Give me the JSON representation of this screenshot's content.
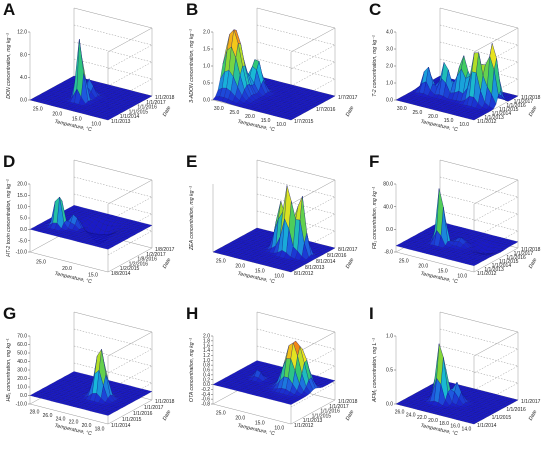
{
  "figure": {
    "panel_letters": [
      "A",
      "B",
      "C",
      "D",
      "E",
      "F",
      "G",
      "H",
      "I"
    ]
  },
  "palette": [
    "#1a1ac8",
    "#1e5be0",
    "#18b8d8",
    "#34c86a",
    "#9fdc2a",
    "#f2e41e",
    "#f59a14",
    "#e0241a"
  ],
  "chart_data": [
    {
      "panel": "A",
      "type": "surface",
      "zlabel": "DON concentration, mg kg⁻¹",
      "xlabel": "Temperature, °C",
      "ylabel": "Date",
      "z_ticks": [
        "0.0",
        "4.0",
        "8.0",
        "12.0"
      ],
      "x_ticks": [
        "25.0",
        "20.0",
        "15.0",
        "10.0"
      ],
      "y_ticks": [
        "1/1/2013",
        "1/1/2014",
        "1/1/2015",
        "1/1/2016",
        "1/1/2017",
        "1/1/2018"
      ],
      "zlim": [
        0,
        12
      ],
      "peaks": [
        {
          "x": 0.45,
          "y": 0.35,
          "z": 12.0,
          "w": 0.04
        },
        {
          "x": 0.45,
          "y": 0.55,
          "z": 3.0,
          "w": 0.05
        }
      ]
    },
    {
      "panel": "B",
      "type": "surface",
      "zlabel": "3-ADON concentration, mg kg⁻¹",
      "xlabel": "Temperature, °C",
      "ylabel": "Date",
      "z_ticks": [
        "0.0",
        "0.5",
        "1.0",
        "1.5",
        "2.0"
      ],
      "x_ticks": [
        "30.0",
        "25.0",
        "20.0",
        "15.0",
        "10.0"
      ],
      "y_ticks": [
        "1/7/2015",
        "1/7/2016",
        "1/7/2017"
      ],
      "zlim": [
        0,
        2
      ],
      "peaks": [
        {
          "x": 0.1,
          "y": 0.3,
          "z": 2.0,
          "w": 0.1
        },
        {
          "x": 0.25,
          "y": 0.55,
          "z": 1.0,
          "w": 0.06
        }
      ]
    },
    {
      "panel": "C",
      "type": "surface",
      "zlabel": "T-2 concentration, mg kg⁻¹",
      "xlabel": "Temperature, °C",
      "ylabel": "Date",
      "z_ticks": [
        "0.0",
        "1.0",
        "2.0",
        "3.0",
        "4.0"
      ],
      "x_ticks": [
        "30.0",
        "25.0",
        "20.0",
        "15.0",
        "10.0"
      ],
      "y_ticks": [
        "1/1/2012",
        "1/1/2013",
        "1/1/2014",
        "1/1/2015",
        "1/1/2016",
        "1/1/2017",
        "1/1/2018"
      ],
      "zlim": [
        0,
        4
      ],
      "peaks": [
        {
          "x": 0.75,
          "y": 0.5,
          "z": 3.2,
          "w": 0.06
        },
        {
          "x": 0.9,
          "y": 0.6,
          "z": 3.6,
          "w": 0.06
        },
        {
          "x": 0.55,
          "y": 0.55,
          "z": 2.5,
          "w": 0.06
        },
        {
          "x": 0.35,
          "y": 0.5,
          "z": 2.0,
          "w": 0.05
        },
        {
          "x": 0.15,
          "y": 0.45,
          "z": 1.6,
          "w": 0.05
        }
      ]
    },
    {
      "panel": "D",
      "type": "surface",
      "zlabel": "HT-2 toxin concentration, mg kg⁻¹",
      "xlabel": "Temperature, °C",
      "ylabel": "Date",
      "z_ticks": [
        "-10.0",
        "-5.0",
        "0.0",
        "5.0",
        "10.0",
        "15.0",
        "20.0"
      ],
      "x_ticks": [
        "25.0",
        "20.0",
        "15.0"
      ],
      "y_ticks": [
        "1/8/2014",
        "1/2/2015",
        "1/2/2016",
        "1/8/2016",
        "1/2/2017",
        "1/8/2017"
      ],
      "zlim": [
        -10,
        20
      ],
      "peaks": [
        {
          "x": 0.2,
          "y": 0.3,
          "z": 18.0,
          "w": 0.04
        },
        {
          "x": 0.35,
          "y": 0.4,
          "z": 6.0,
          "w": 0.05
        },
        {
          "x": 0.55,
          "y": 0.6,
          "z": -8.0,
          "w": 0.1
        }
      ]
    },
    {
      "panel": "E",
      "type": "surface",
      "zlabel": "ZEA concentration, mg kg⁻¹",
      "xlabel": "Temperature, °C",
      "ylabel": "Date",
      "z_ticks": [],
      "x_ticks": [
        "25.0",
        "20.0",
        "15.0",
        "10.0"
      ],
      "y_ticks": [
        "8/1/2012",
        "8/1/2013",
        "8/1/2014",
        "8/1/2016",
        "8/1/2017"
      ],
      "zlim": [
        0,
        1
      ],
      "peaks": [
        {
          "x": 0.55,
          "y": 0.55,
          "z": 0.7,
          "w": 0.05
        },
        {
          "x": 0.68,
          "y": 0.5,
          "z": 1.0,
          "w": 0.05
        },
        {
          "x": 0.82,
          "y": 0.55,
          "z": 0.9,
          "w": 0.05
        }
      ]
    },
    {
      "panel": "F",
      "type": "surface",
      "zlabel": "FB₁ concentration, mg kg⁻¹",
      "xlabel": "Temperature, °C",
      "ylabel": "Date",
      "z_ticks": [
        "-8.0",
        "0.0",
        "40.0",
        "80.0"
      ],
      "x_ticks": [
        "25.0",
        "20.0",
        "15.0",
        "10.0"
      ],
      "y_ticks": [
        "1/1/2012",
        "1/1/2013",
        "1/1/2014",
        "1/1/2015",
        "1/1/2016",
        "1/1/2017",
        "1/1/2018"
      ],
      "zlim": [
        -8,
        80
      ],
      "peaks": [
        {
          "x": 0.35,
          "y": 0.4,
          "z": 80.0,
          "w": 0.04
        },
        {
          "x": 0.55,
          "y": 0.5,
          "z": 10.0,
          "w": 0.06
        },
        {
          "x": 0.8,
          "y": 0.6,
          "z": -8.0,
          "w": 0.1
        }
      ]
    },
    {
      "panel": "G",
      "type": "surface",
      "zlabel": "HB₁ concentration, mg kg⁻¹",
      "xlabel": "Temperature, °C",
      "ylabel": "Date",
      "z_ticks": [
        "-10.0",
        "0.0",
        "10.0",
        "20.0",
        "30.0",
        "40.0",
        "50.0",
        "60.0",
        "70.0"
      ],
      "x_ticks": [
        "28.0",
        "26.0",
        "24.0",
        "22.0",
        "20.0",
        "18.0"
      ],
      "y_ticks": [
        "1/1/2014",
        "1/1/2015",
        "1/1/2016",
        "1/1/2017",
        "1/1/2018"
      ],
      "zlim": [
        -10,
        70
      ],
      "peaks": [
        {
          "x": 0.65,
          "y": 0.45,
          "z": 60.0,
          "w": 0.06
        }
      ]
    },
    {
      "panel": "H",
      "type": "surface",
      "zlabel": "OTA concentration, mg kg⁻¹",
      "xlabel": "Temperature, °C",
      "ylabel": "Date",
      "z_ticks": [
        "-0.8",
        "-0.6",
        "-0.4",
        "-0.2",
        "0.0",
        "0.2",
        "0.4",
        "0.6",
        "0.8",
        "1.0",
        "1.2",
        "1.4",
        "1.6",
        "1.8",
        "2.0"
      ],
      "x_ticks": [
        "25.0",
        "20.0",
        "15.0",
        "10.0"
      ],
      "y_ticks": [
        "1/1/2012",
        "1/1/2013",
        "1/1/2015",
        "1/1/2016",
        "1/1/2017",
        "1/1/2018"
      ],
      "zlim": [
        -0.8,
        2.0
      ],
      "peaks": [
        {
          "x": 0.75,
          "y": 0.45,
          "z": 1.8,
          "w": 0.08
        },
        {
          "x": 0.85,
          "y": 0.55,
          "z": 1.2,
          "w": 0.07
        },
        {
          "x": 0.3,
          "y": 0.5,
          "z": 0.4,
          "w": 0.04
        }
      ]
    },
    {
      "panel": "I",
      "type": "surface",
      "zlabel": "AFM₁ concentration, mg L⁻¹",
      "xlabel": "Temperature, °C",
      "ylabel": "Date",
      "z_ticks": [
        "0.0",
        "0.5",
        "1.0"
      ],
      "x_ticks": [
        "26.0",
        "24.0",
        "22.0",
        "20.0",
        "18.0",
        "16.0",
        "14.0"
      ],
      "y_ticks": [
        "1/1/2014",
        "1/1/2015",
        "1/1/2016",
        "1/1/2017"
      ],
      "zlim": [
        0,
        1.2
      ],
      "peaks": [
        {
          "x": 0.35,
          "y": 0.4,
          "z": 1.1,
          "w": 0.05
        },
        {
          "x": 0.5,
          "y": 0.5,
          "z": 0.35,
          "w": 0.05
        }
      ]
    }
  ]
}
